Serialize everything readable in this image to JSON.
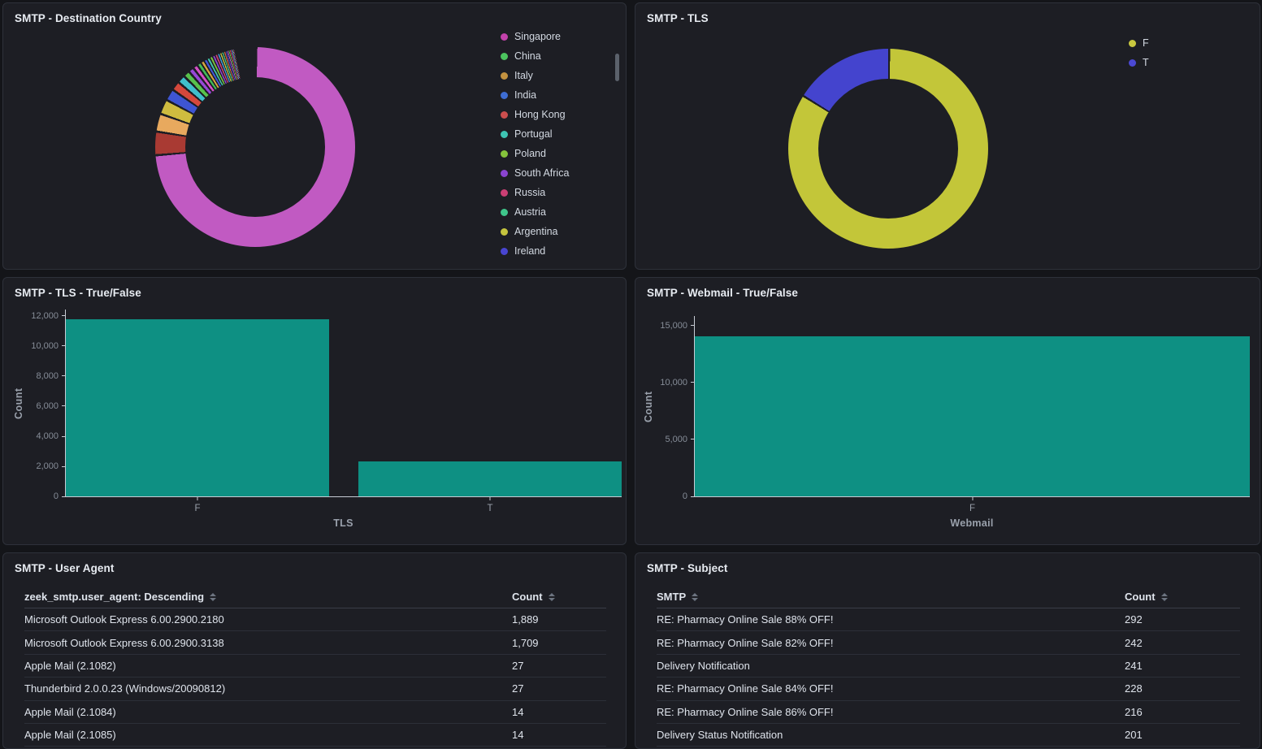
{
  "theme": {
    "page_bg": "#141519",
    "panel_bg": "#1d1e24",
    "panel_border": "#2e313a",
    "axis_line": "#c7ccd4",
    "bar_teal": "#0e9083",
    "tls_false_yellow": "#c3c639",
    "tls_true_blue": "#4444ce",
    "dest_main_magenta": "#c15ac2"
  },
  "chart_data": [
    {
      "id": "smtp-destination-country-donut",
      "type": "pie",
      "donut": true,
      "title": "SMTP - Destination Country",
      "legend_position": "right",
      "legend_scrollable": true,
      "gap_deg": 1.3,
      "legend_items": [
        {
          "label": "Singapore",
          "color": "#c342ab"
        },
        {
          "label": "China",
          "color": "#4cc45f"
        },
        {
          "label": "Italy",
          "color": "#c39240"
        },
        {
          "label": "India",
          "color": "#3e6dd3"
        },
        {
          "label": "Hong Kong",
          "color": "#cb4e4e"
        },
        {
          "label": "Portugal",
          "color": "#3ec5b4"
        },
        {
          "label": "Poland",
          "color": "#85c43c"
        },
        {
          "label": "South Africa",
          "color": "#8a44d0"
        },
        {
          "label": "Russia",
          "color": "#cb3f74"
        },
        {
          "label": "Austria",
          "color": "#3fc68b"
        },
        {
          "label": "Argentina",
          "color": "#c5c43e"
        },
        {
          "label": "Ireland",
          "color": "#4845d1"
        }
      ],
      "slices_pct": [
        {
          "label": "Singapore",
          "value": 73.5,
          "color": "#c15ac2"
        },
        {
          "label": "China",
          "value": 3.8,
          "color": "#a93a33"
        },
        {
          "label": "Italy",
          "value": 2.9,
          "color": "#e8a95e"
        },
        {
          "label": "India",
          "value": 2.4,
          "color": "#cfbc3f"
        },
        {
          "label": "Hong Kong",
          "value": 1.9,
          "color": "#3e55d3"
        },
        {
          "label": "Portugal",
          "value": 1.5,
          "color": "#d5483c"
        },
        {
          "label": "Poland",
          "value": 1.3,
          "color": "#40bfcb"
        },
        {
          "label": "South Africa",
          "value": 1.05,
          "color": "#58c24c"
        },
        {
          "label": "Russia",
          "value": 0.9,
          "color": "#9747d8"
        },
        {
          "label": "Austria",
          "value": 0.8,
          "color": "#d44fc6"
        },
        {
          "label": "Argentina",
          "value": 0.7,
          "color": "#41bb55"
        },
        {
          "label": "Ireland",
          "value": 0.6,
          "color": "#d8a33e"
        },
        {
          "label": "",
          "value": 0.55,
          "color": "#4156d6"
        },
        {
          "label": "",
          "value": 0.5,
          "color": "#3ec2a7"
        },
        {
          "label": "",
          "value": 0.48,
          "color": "#7dc43e"
        },
        {
          "label": "",
          "value": 0.45,
          "color": "#8a42ce"
        },
        {
          "label": "",
          "value": 0.42,
          "color": "#cc3f72"
        },
        {
          "label": "",
          "value": 0.39,
          "color": "#3f9ad6"
        },
        {
          "label": "",
          "value": 0.36,
          "color": "#c2c23f"
        },
        {
          "label": "",
          "value": 0.33,
          "color": "#44c48a"
        },
        {
          "label": "",
          "value": 0.3,
          "color": "#d86a3e"
        },
        {
          "label": "",
          "value": 0.27,
          "color": "#4743ce"
        },
        {
          "label": "",
          "value": 0.24,
          "color": "#c15ac2"
        },
        {
          "label": "",
          "value": 0.21,
          "color": "#58c24c"
        },
        {
          "label": "",
          "value": 0.18,
          "color": "#d5483c"
        },
        {
          "label": "",
          "value": 0.15,
          "color": "#9747d8"
        },
        {
          "label": "",
          "value": 0.13,
          "color": "#40bfcb"
        },
        {
          "label": "",
          "value": 0.11,
          "color": "#e8a95e"
        },
        {
          "label": "",
          "value": 0.1,
          "color": "#3e55d3"
        },
        {
          "label": "",
          "value": 0.09,
          "color": "#a93a33"
        }
      ]
    },
    {
      "id": "smtp-tls-donut",
      "type": "pie",
      "donut": true,
      "title": "SMTP - TLS",
      "legend_position": "right",
      "gap_deg": 1.2,
      "categories": [
        "F",
        "T"
      ],
      "values": [
        11800,
        2300
      ],
      "colors": [
        "#c3c639",
        "#4444ce"
      ],
      "legend_items": [
        {
          "label": "F",
          "color": "#c9c83f"
        },
        {
          "label": "T",
          "color": "#4b49d4"
        }
      ]
    },
    {
      "id": "smtp-tls-bar",
      "type": "bar",
      "title": "SMTP - TLS - True/False",
      "categories": [
        "F",
        "T"
      ],
      "values": [
        11800,
        2300
      ],
      "xlabel": "TLS",
      "ylabel": "Count",
      "ylim": [
        0,
        12000
      ],
      "yticks": [
        0,
        2000,
        4000,
        6000,
        8000,
        10000,
        12000
      ],
      "ytick_labels": [
        "0",
        "2,000",
        "4,000",
        "6,000",
        "8,000",
        "10,000",
        "12,000"
      ],
      "render_max": 12430,
      "band_padding": 0.1,
      "bar_color": "#0e9083",
      "grid": false,
      "legend": "none"
    },
    {
      "id": "smtp-webmail-bar",
      "type": "bar",
      "title": "SMTP - Webmail - True/False",
      "categories": [
        "F"
      ],
      "values": [
        14100
      ],
      "xlabel": "Webmail",
      "ylabel": "Count",
      "ylim": [
        0,
        15000
      ],
      "yticks": [
        0,
        5000,
        10000,
        15000
      ],
      "ytick_labels": [
        "0",
        "5,000",
        "10,000",
        "15,000"
      ],
      "render_max": 15850,
      "band_padding": 0.003,
      "bar_color": "#0e9083",
      "grid": false,
      "legend": "none"
    },
    {
      "id": "smtp-user-agent-table",
      "type": "table",
      "title": "SMTP - User Agent",
      "columns": [
        "zeek_smtp.user_agent: Descending",
        "Count"
      ],
      "rows": [
        [
          "Microsoft Outlook Express 6.00.2900.2180",
          "1,889"
        ],
        [
          "Microsoft Outlook Express 6.00.2900.3138",
          "1,709"
        ],
        [
          "Apple Mail (2.1082)",
          "27"
        ],
        [
          "Thunderbird 2.0.0.23 (Windows/20090812)",
          "27"
        ],
        [
          "Apple Mail (2.1084)",
          "14"
        ],
        [
          "Apple Mail (2.1085)",
          "14"
        ]
      ]
    },
    {
      "id": "smtp-subject-table",
      "type": "table",
      "title": "SMTP - Subject",
      "columns": [
        "SMTP",
        "Count"
      ],
      "rows": [
        [
          "RE: Pharmacy Online Sale 88% OFF!",
          "292"
        ],
        [
          "RE: Pharmacy Online Sale 82% OFF!",
          "242"
        ],
        [
          "Delivery Notification",
          "241"
        ],
        [
          "RE: Pharmacy Online Sale 84% OFF!",
          "228"
        ],
        [
          "RE: Pharmacy Online Sale 86% OFF!",
          "216"
        ],
        [
          "Delivery Status Notification",
          "201"
        ]
      ]
    }
  ]
}
